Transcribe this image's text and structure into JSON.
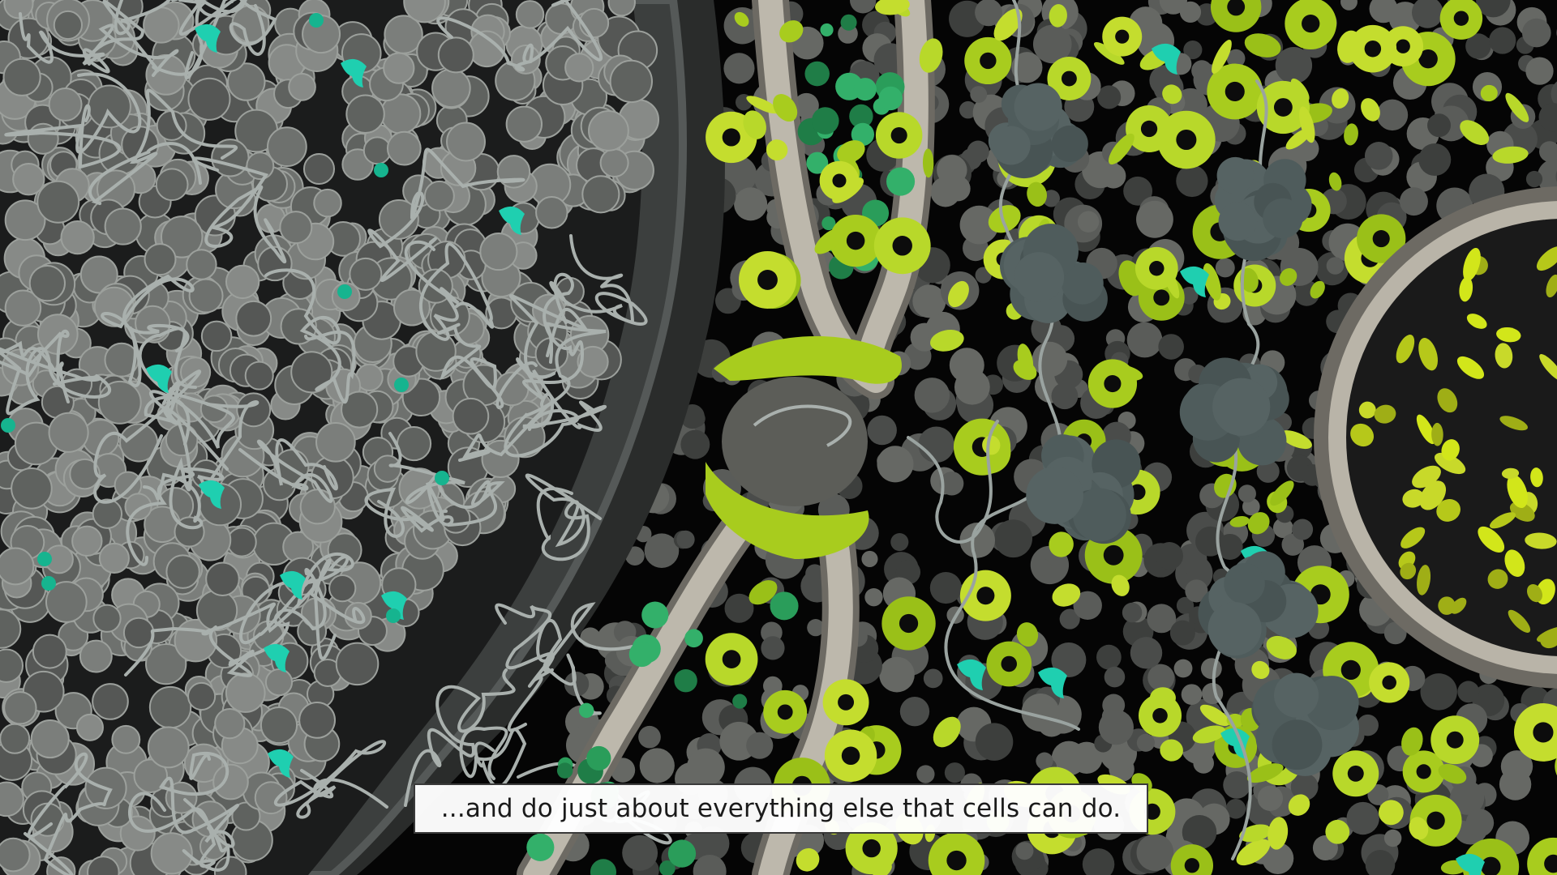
{
  "video": {
    "subtitle": "...and do just about everything else that cells can do."
  },
  "palette": {
    "background": "#050505",
    "chromatin_gray": "#6e716e",
    "fiber_gray": "#a9b0ad",
    "nuclear_envelope": "#3f4241",
    "membrane_beige": "#bdb8ac",
    "lime": "#a8cc1e",
    "bright_yellow": "#d2e61a",
    "teal": "#1fcfb0",
    "green": "#2a9d5a",
    "ribosome_slate": "#4f5c5c"
  }
}
